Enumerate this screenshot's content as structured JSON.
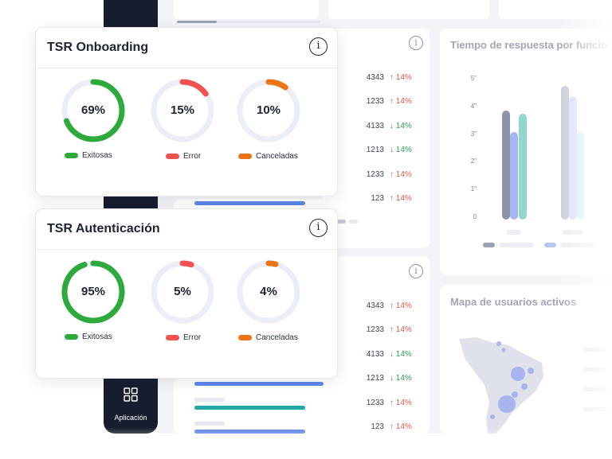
{
  "colors": {
    "success": "#2eaa3c",
    "error": "#f0524f",
    "cancel": "#ee7314",
    "track": "#ebeef6",
    "sidebar": "#161d2e",
    "bar_blue": "#5b87e8",
    "bar_teal": "#1fa9a6"
  },
  "sidebar": {
    "app_label": "Aplicación",
    "app_icon": "grid-icon"
  },
  "cards": [
    {
      "title": "TSR Onboarding",
      "info_icon": "info-icon",
      "metrics": [
        {
          "value_label": "69%",
          "value": 69,
          "legend": "Exitosas",
          "color": "#2eaa3c"
        },
        {
          "value_label": "15%",
          "value": 15,
          "legend": "Error",
          "color": "#f0524f"
        },
        {
          "value_label": "10%",
          "value": 10,
          "legend": "Canceladas",
          "color": "#ee7314"
        }
      ]
    },
    {
      "title": "TSR Autenticación",
      "info_icon": "info-icon",
      "metrics": [
        {
          "value_label": "95%",
          "value": 95,
          "legend": "Exitosas",
          "color": "#2eaa3c"
        },
        {
          "value_label": "5%",
          "value": 5,
          "legend": "Error",
          "color": "#f0524f"
        },
        {
          "value_label": "4%",
          "value": 4,
          "legend": "Canceladas",
          "color": "#ee7314"
        }
      ]
    }
  ],
  "background": {
    "table_top": {
      "rows": [
        {
          "value": "4343",
          "change": "14%",
          "direction": "up"
        },
        {
          "value": "1233",
          "change": "14%",
          "direction": "up"
        },
        {
          "value": "4133",
          "change": "14%",
          "direction": "down"
        },
        {
          "value": "1213",
          "change": "14%",
          "direction": "down"
        },
        {
          "value": "1233",
          "change": "14%",
          "direction": "up"
        },
        {
          "value": "123",
          "change": "14%",
          "direction": "up"
        }
      ]
    },
    "table_bottom": {
      "rows": [
        {
          "value": "4343",
          "change": "14%",
          "direction": "up"
        },
        {
          "value": "1233",
          "change": "14%",
          "direction": "up"
        },
        {
          "value": "4133",
          "change": "14%",
          "direction": "down"
        },
        {
          "value": "1213",
          "change": "14%",
          "direction": "down"
        },
        {
          "value": "1233",
          "change": "14%",
          "direction": "up"
        },
        {
          "value": "123",
          "change": "14%",
          "direction": "up"
        }
      ]
    },
    "response_chart": {
      "title": "Tiempo de respuesta por funcio",
      "y_ticks": [
        "5\"",
        "4\"",
        "3\"",
        "2\"",
        "1\"",
        "0"
      ]
    },
    "map": {
      "title": "Mapa de usuarios activos"
    }
  }
}
